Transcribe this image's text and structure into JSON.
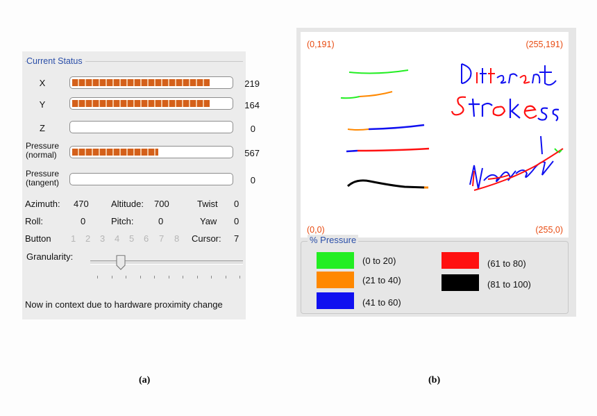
{
  "panel_a": {
    "group_title": "Current Status",
    "rows": [
      {
        "label": "X",
        "value": "219",
        "fill": 0.86
      },
      {
        "label": "Y",
        "value": "164",
        "fill": 0.86
      },
      {
        "label": "Z",
        "value": "0",
        "fill": 0
      },
      {
        "label_line1": "Pressure",
        "label_line2": "(normal)",
        "value": "567",
        "fill": 0.54
      },
      {
        "label_line1": "Pressure",
        "label_line2": "(tangent)",
        "value": "0",
        "fill": 0
      }
    ],
    "azimuth_label": "Azimuth:",
    "azimuth_value": "470",
    "altitude_label": "Altitude:",
    "altitude_value": "700",
    "twist_label": "Twist",
    "twist_value": "0",
    "roll_label": "Roll:",
    "roll_value": "0",
    "pitch_label": "Pitch:",
    "pitch_value": "0",
    "yaw_label": "Yaw",
    "yaw_value": "0",
    "button_label": "Button",
    "buttons": [
      "1",
      "2",
      "3",
      "4",
      "5",
      "6",
      "7",
      "8"
    ],
    "cursor_label": "Cursor:",
    "cursor_value": "7",
    "granularity_label": "Granularity:",
    "granularity_level": 0.2,
    "status_message": "Now in context due to hardware proximity change"
  },
  "panel_b": {
    "corner_top_left": "(0,191)",
    "corner_top_right": "(255,191)",
    "corner_bottom_left": "(0,0)",
    "corner_bottom_right": "(255,0)",
    "legend_title": "% Pressure",
    "legend": [
      {
        "label": "(0 to 20)",
        "color": "#22ee22"
      },
      {
        "label": "(21 to 40)",
        "color": "#ff8800"
      },
      {
        "label": "(41 to 60)",
        "color": "#1010f0"
      },
      {
        "label": "(61 to 80)",
        "color": "#ff1010"
      },
      {
        "label": "(81 to 100)",
        "color": "#000000"
      }
    ]
  },
  "captions": {
    "a": "(a)",
    "b": "(b)"
  }
}
